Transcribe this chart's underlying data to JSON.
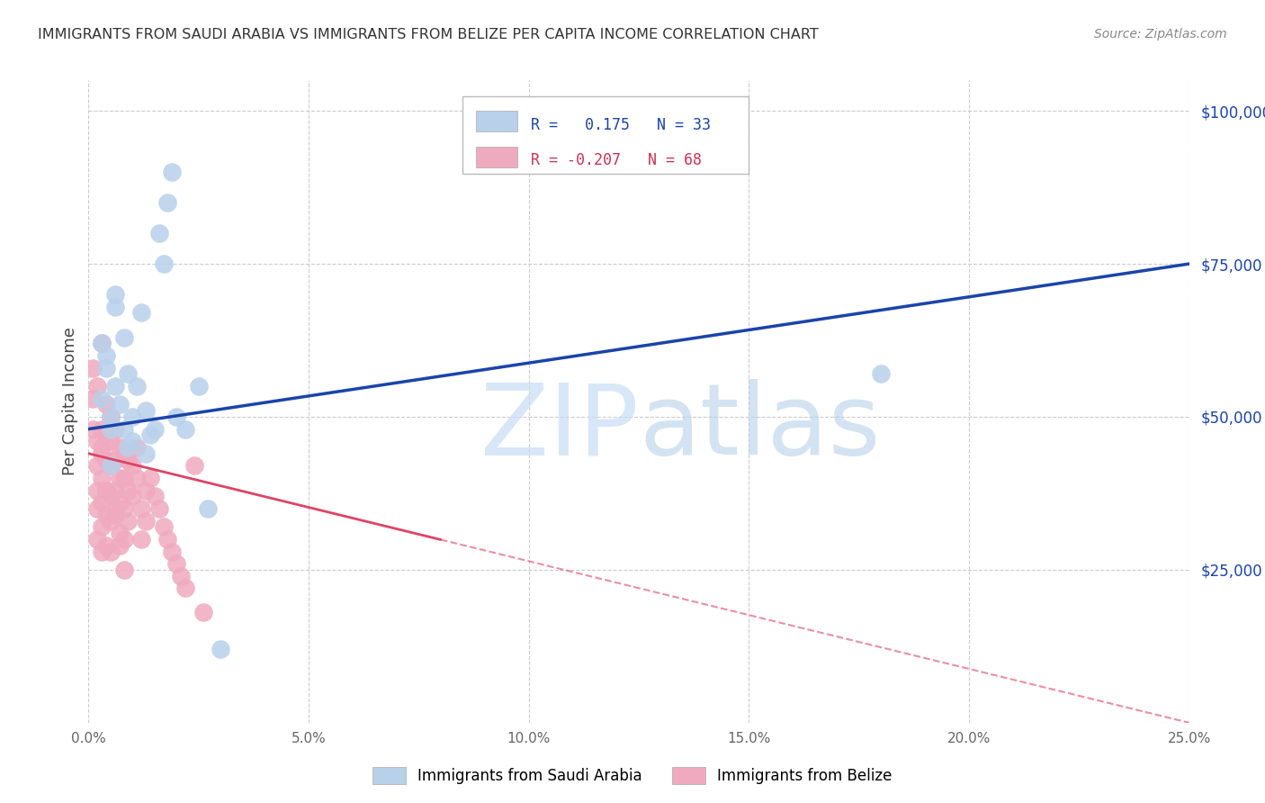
{
  "title": "IMMIGRANTS FROM SAUDI ARABIA VS IMMIGRANTS FROM BELIZE PER CAPITA INCOME CORRELATION CHART",
  "source": "Source: ZipAtlas.com",
  "ylabel": "Per Capita Income",
  "yticks": [
    0,
    25000,
    50000,
    75000,
    100000
  ],
  "ytick_labels": [
    "",
    "$25,000",
    "$50,000",
    "$75,000",
    "$100,000"
  ],
  "xticks": [
    0.0,
    0.05,
    0.1,
    0.15,
    0.2,
    0.25
  ],
  "xtick_labels": [
    "0.0%",
    "5.0%",
    "10.0%",
    "15.0%",
    "20.0%",
    "25.0%"
  ],
  "xmin": 0.0,
  "xmax": 0.25,
  "ymin": 0,
  "ymax": 105000,
  "saudi_R": 0.175,
  "saudi_N": 33,
  "belize_R": -0.207,
  "belize_N": 68,
  "saudi_color": "#b8d0ea",
  "belize_color": "#f0aac0",
  "saudi_line_color": "#1a44aa",
  "belize_line_color": "#dd4466",
  "watermark_color": "#ddeeff",
  "background_color": "#ffffff",
  "grid_color": "#cccccc",
  "saudi_line_x0": 0.0,
  "saudi_line_y0": 48000,
  "saudi_line_x1": 0.25,
  "saudi_line_y1": 75000,
  "belize_line_x0": 0.0,
  "belize_line_y0": 44000,
  "belize_line_x1": 0.25,
  "belize_line_y1": 0,
  "saudi_x": [
    0.003,
    0.004,
    0.005,
    0.005,
    0.006,
    0.006,
    0.007,
    0.008,
    0.008,
    0.009,
    0.009,
    0.01,
    0.01,
    0.011,
    0.012,
    0.013,
    0.013,
    0.014,
    0.015,
    0.016,
    0.017,
    0.018,
    0.019,
    0.02,
    0.022,
    0.025,
    0.027,
    0.03,
    0.003,
    0.004,
    0.005,
    0.006,
    0.18
  ],
  "saudi_y": [
    53000,
    60000,
    50000,
    48000,
    70000,
    55000,
    52000,
    63000,
    48000,
    57000,
    45000,
    50000,
    46000,
    55000,
    67000,
    51000,
    44000,
    47000,
    48000,
    80000,
    75000,
    85000,
    90000,
    50000,
    48000,
    55000,
    35000,
    12000,
    62000,
    58000,
    42000,
    68000,
    57000
  ],
  "belize_x": [
    0.001,
    0.001,
    0.001,
    0.002,
    0.002,
    0.002,
    0.002,
    0.002,
    0.003,
    0.003,
    0.003,
    0.003,
    0.003,
    0.003,
    0.004,
    0.004,
    0.004,
    0.004,
    0.004,
    0.004,
    0.005,
    0.005,
    0.005,
    0.005,
    0.005,
    0.005,
    0.006,
    0.006,
    0.006,
    0.006,
    0.007,
    0.007,
    0.007,
    0.007,
    0.008,
    0.008,
    0.008,
    0.008,
    0.009,
    0.009,
    0.009,
    0.01,
    0.01,
    0.011,
    0.011,
    0.012,
    0.012,
    0.013,
    0.013,
    0.014,
    0.015,
    0.016,
    0.017,
    0.018,
    0.019,
    0.02,
    0.021,
    0.022,
    0.024,
    0.026,
    0.003,
    0.005,
    0.006,
    0.007,
    0.008,
    0.002,
    0.003,
    0.004
  ],
  "belize_y": [
    58000,
    53000,
    48000,
    46000,
    42000,
    38000,
    35000,
    30000,
    48000,
    44000,
    40000,
    36000,
    32000,
    28000,
    52000,
    47000,
    43000,
    38000,
    34000,
    29000,
    50000,
    46000,
    42000,
    37000,
    33000,
    28000,
    48000,
    43000,
    38000,
    34000,
    45000,
    40000,
    36000,
    31000,
    44000,
    40000,
    35000,
    30000,
    43000,
    38000,
    33000,
    42000,
    37000,
    45000,
    40000,
    35000,
    30000,
    38000,
    33000,
    40000,
    37000,
    35000,
    32000,
    30000,
    28000,
    26000,
    24000,
    22000,
    42000,
    18000,
    62000,
    50000,
    35000,
    29000,
    25000,
    55000,
    45000,
    38000
  ]
}
